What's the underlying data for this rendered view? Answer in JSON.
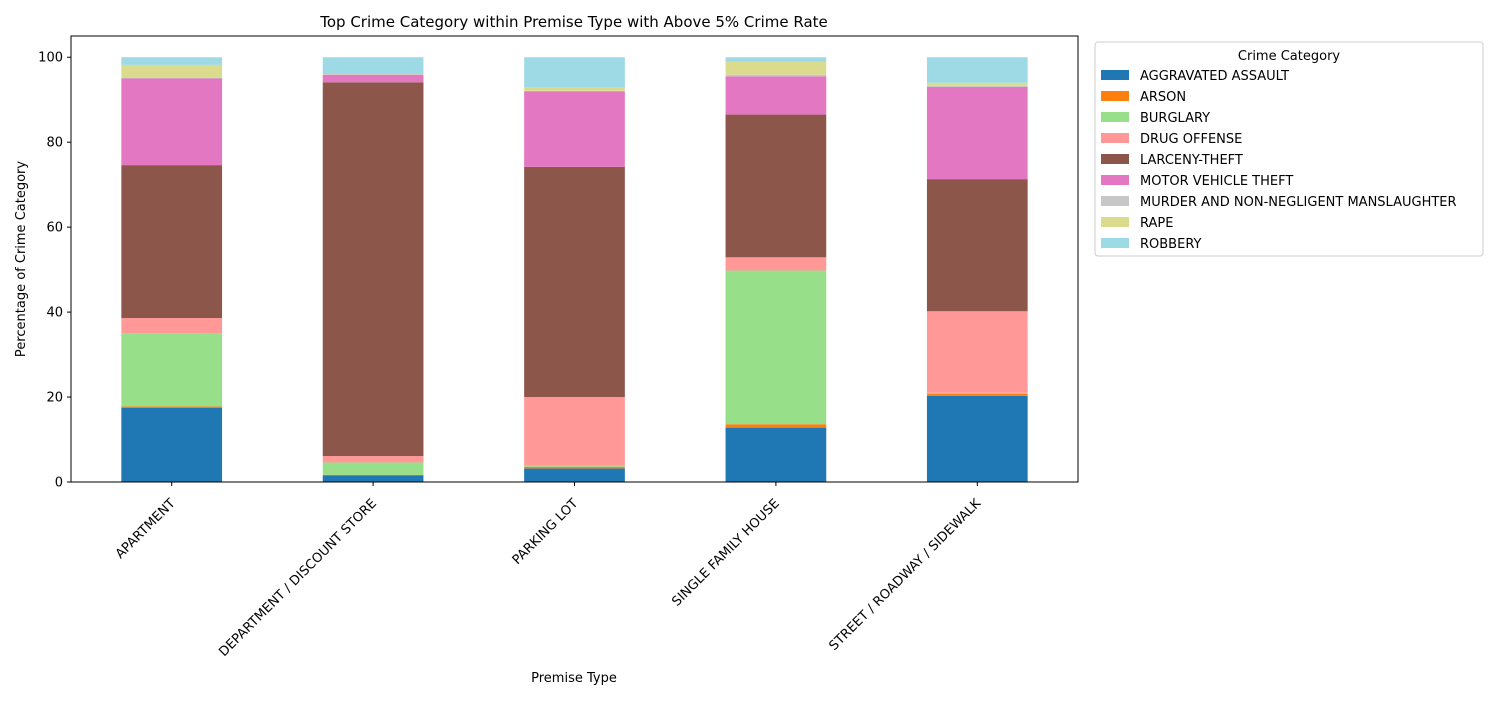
{
  "chart_data": {
    "type": "bar",
    "stacked": true,
    "title": "Top Crime Category within Premise Type with Above 5% Crime Rate",
    "xlabel": "Premise Type",
    "ylabel": "Percentage of Crime Category",
    "ylim": [
      0,
      105
    ],
    "yticks": [
      0,
      20,
      40,
      60,
      80,
      100
    ],
    "grid": false,
    "legend": {
      "title": "Crime Category",
      "placement": "outside-upper-right"
    },
    "categories": [
      "APARTMENT",
      "DEPARTMENT / DISCOUNT STORE",
      "PARKING LOT",
      "SINGLE FAMILY HOUSE",
      "STREET / ROADWAY / SIDEWALK"
    ],
    "series": [
      {
        "name": "AGGRAVATED ASSAULT",
        "color": "#1f77b4",
        "values": [
          17.5,
          1.6,
          3.2,
          12.8,
          20.3
        ]
      },
      {
        "name": "ARSON",
        "color": "#ff7f0e",
        "values": [
          0.3,
          0.1,
          0.4,
          0.8,
          0.5
        ]
      },
      {
        "name": "BURGLARY",
        "color": "#98df8a",
        "values": [
          17.2,
          2.9,
          0.3,
          36.2,
          0.2
        ]
      },
      {
        "name": "DRUG OFFENSE",
        "color": "#ff9896",
        "values": [
          3.6,
          1.5,
          16.1,
          3.1,
          19.2
        ]
      },
      {
        "name": "LARCENY-THEFT",
        "color": "#8c564b",
        "values": [
          36.0,
          88.0,
          54.2,
          33.6,
          31.1
        ]
      },
      {
        "name": "MOTOR VEHICLE THEFT",
        "color": "#e377c2",
        "values": [
          20.4,
          1.8,
          17.8,
          9.0,
          21.7
        ]
      },
      {
        "name": "MURDER AND NON-NEGLIGENT MANSLAUGHTER",
        "color": "#c7c7c7",
        "values": [
          0.2,
          0.0,
          0.1,
          0.4,
          0.3
        ]
      },
      {
        "name": "RAPE",
        "color": "#dbdb8d",
        "values": [
          3.0,
          0.1,
          0.8,
          3.0,
          0.7
        ]
      },
      {
        "name": "ROBBERY",
        "color": "#9edae5",
        "values": [
          1.8,
          4.0,
          7.1,
          1.1,
          6.0
        ]
      }
    ]
  }
}
